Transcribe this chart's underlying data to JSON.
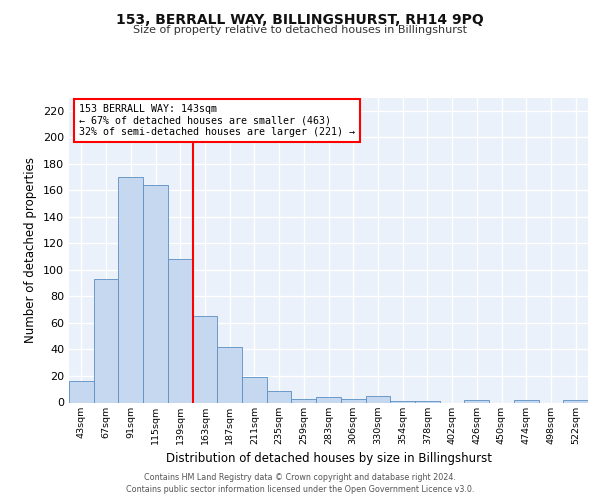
{
  "title1": "153, BERRALL WAY, BILLINGSHURST, RH14 9PQ",
  "title2": "Size of property relative to detached houses in Billingshurst",
  "xlabel": "Distribution of detached houses by size in Billingshurst",
  "ylabel": "Number of detached properties",
  "categories": [
    "43sqm",
    "67sqm",
    "91sqm",
    "115sqm",
    "139sqm",
    "163sqm",
    "187sqm",
    "211sqm",
    "235sqm",
    "259sqm",
    "283sqm",
    "306sqm",
    "330sqm",
    "354sqm",
    "378sqm",
    "402sqm",
    "426sqm",
    "450sqm",
    "474sqm",
    "498sqm",
    "522sqm"
  ],
  "values": [
    16,
    93,
    170,
    164,
    108,
    65,
    42,
    19,
    9,
    3,
    4,
    3,
    5,
    1,
    1,
    0,
    2,
    0,
    2,
    0,
    2
  ],
  "bar_color": "#c5d8f0",
  "bar_edge_color": "#5a8fc2",
  "bg_color": "#eaf1fa",
  "grid_color": "#ffffff",
  "red_line_x": 4.5,
  "ylim": [
    0,
    230
  ],
  "yticks": [
    0,
    20,
    40,
    60,
    80,
    100,
    120,
    140,
    160,
    180,
    200,
    220
  ],
  "annotation_text": "153 BERRALL WAY: 143sqm\n← 67% of detached houses are smaller (463)\n32% of semi-detached houses are larger (221) →",
  "footer1": "Contains HM Land Registry data © Crown copyright and database right 2024.",
  "footer2": "Contains public sector information licensed under the Open Government Licence v3.0."
}
